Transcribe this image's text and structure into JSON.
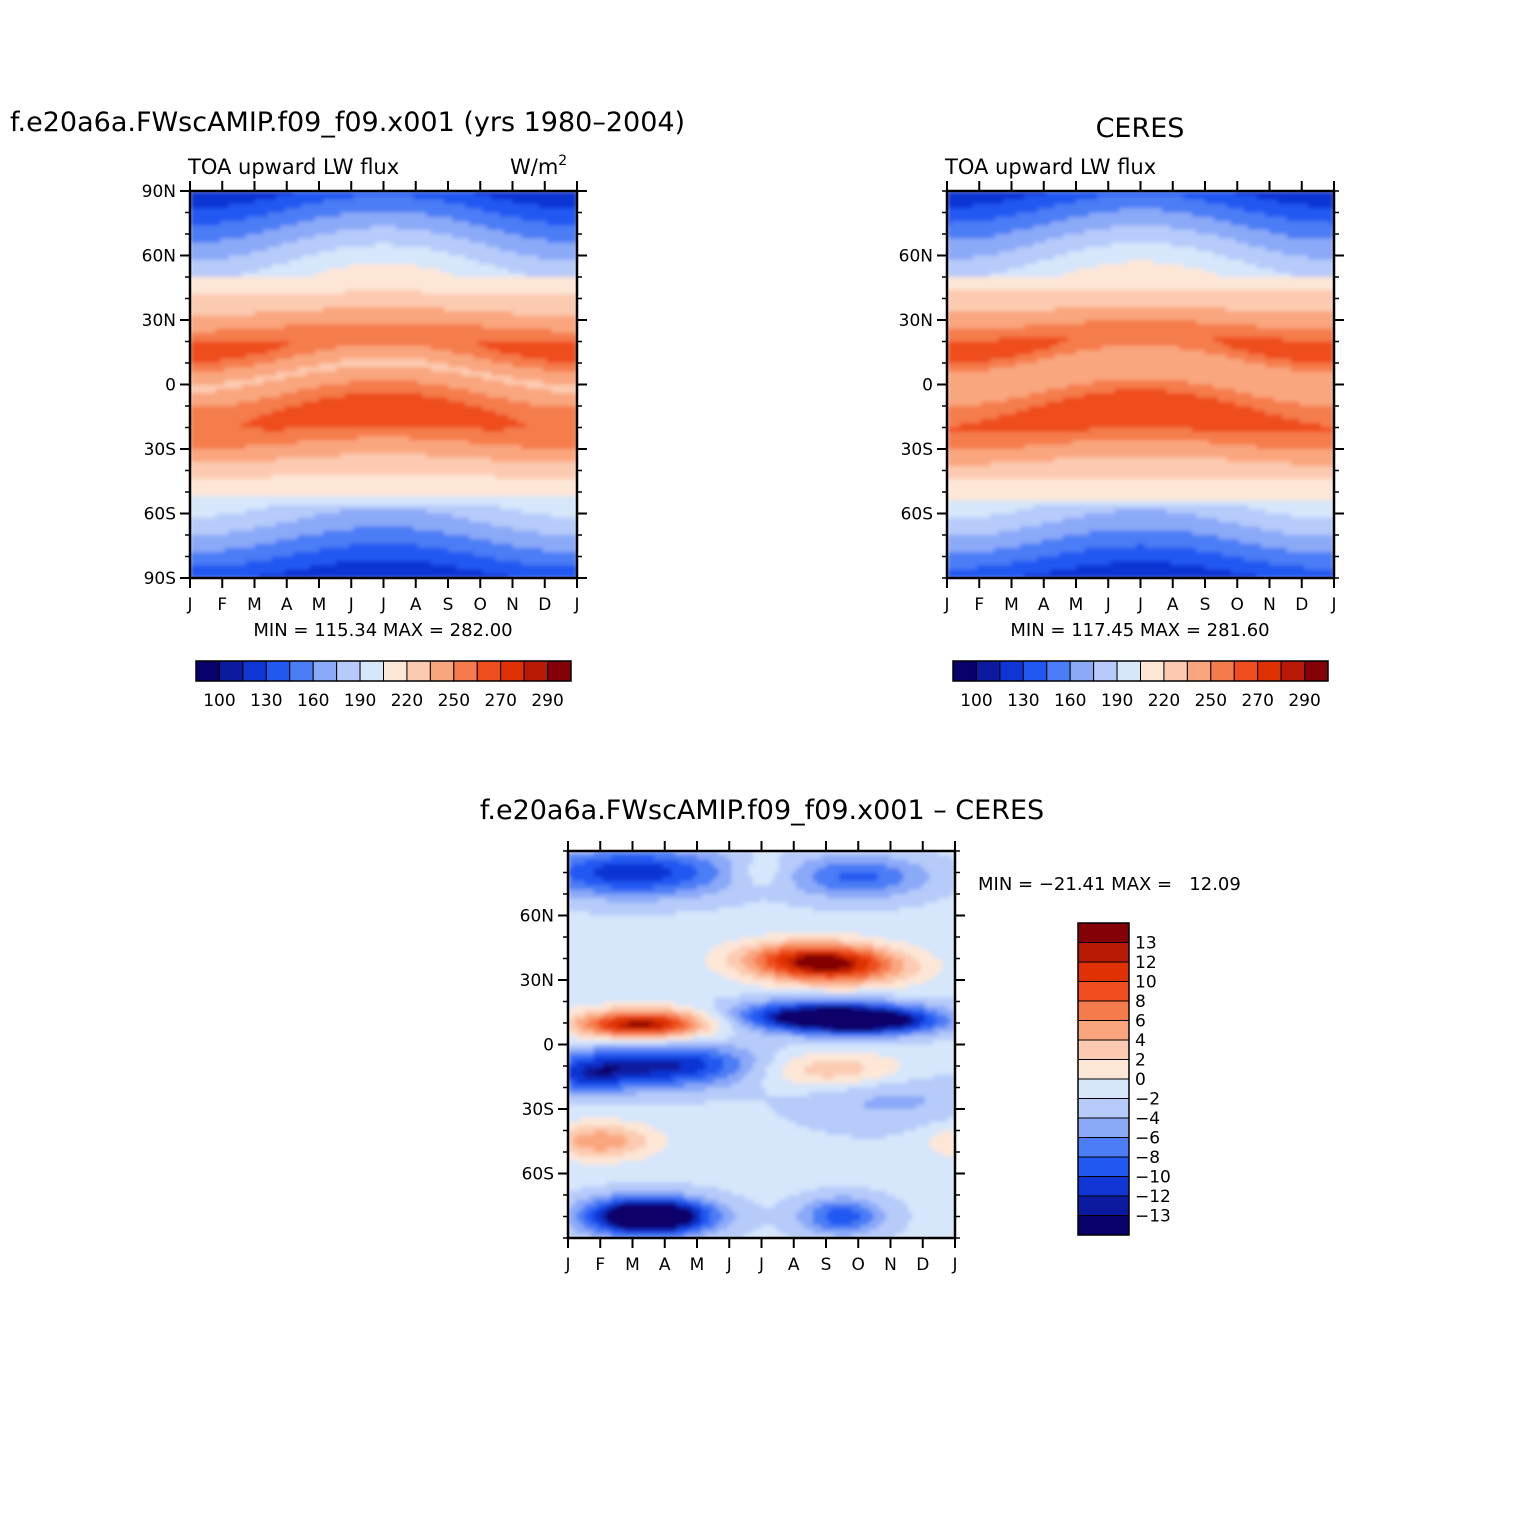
{
  "colors": {
    "abs_palette": [
      "#08006b",
      "#0b1a9f",
      "#0f36d4",
      "#2258f2",
      "#4b7df6",
      "#8aa9f7",
      "#b6cbfa",
      "#d6e6fb",
      "#fde6d6",
      "#fccab0",
      "#f9a67e",
      "#f57b4c",
      "#ef4d1e",
      "#df3103",
      "#b81a05",
      "#830006"
    ],
    "diff_palette": [
      "#08006b",
      "#0b1a9f",
      "#0f36d4",
      "#2258f2",
      "#4b7df6",
      "#8aa9f7",
      "#b6cbfa",
      "#d6e6fb",
      "#fde6d6",
      "#fccab0",
      "#f9a67e",
      "#f57b4c",
      "#ef4d1e",
      "#df3103",
      "#b81a05",
      "#830006"
    ]
  },
  "chart_data": [
    {
      "type": "heatmap",
      "title": "f.e20a6a.FWscAMIP.f09_f09.x001 (yrs 1980–2004)",
      "subtitle_left": "TOA upward LW flux",
      "subtitle_right": "W/m",
      "subtitle_right_sup": "2",
      "x_ticks": [
        "J",
        "F",
        "M",
        "A",
        "M",
        "J",
        "J",
        "A",
        "S",
        "O",
        "N",
        "D",
        "J"
      ],
      "y_ticks": [
        "90N",
        "60N",
        "30N",
        "0",
        "30S",
        "60S",
        "90S"
      ],
      "stats": "MIN = 115.34 MAX = 282.00",
      "colorbar_labels": [
        "100",
        "130",
        "160",
        "190",
        "220",
        "250",
        "270",
        "290"
      ],
      "xlim": [
        "J",
        "J"
      ],
      "ylim": [
        "90S",
        "90N"
      ],
      "z_min": 115.34,
      "z_max": 282.0
    },
    {
      "type": "heatmap",
      "title": "CERES",
      "subtitle_left": "TOA upward LW flux",
      "x_ticks": [
        "J",
        "F",
        "M",
        "A",
        "M",
        "J",
        "J",
        "A",
        "S",
        "O",
        "N",
        "D",
        "J"
      ],
      "y_ticks": [
        "60N",
        "30N",
        "0",
        "30S",
        "60S"
      ],
      "stats": "MIN = 117.45 MAX = 281.60",
      "colorbar_labels": [
        "100",
        "130",
        "160",
        "190",
        "220",
        "250",
        "270",
        "290"
      ],
      "z_min": 117.45,
      "z_max": 281.6
    },
    {
      "type": "heatmap",
      "title": "f.e20a6a.FWscAMIP.f09_f09.x001 – CERES",
      "x_ticks": [
        "J",
        "F",
        "M",
        "A",
        "M",
        "J",
        "J",
        "A",
        "S",
        "O",
        "N",
        "D",
        "J"
      ],
      "y_ticks": [
        "60N",
        "30N",
        "0",
        "30S",
        "60S"
      ],
      "stats": "MIN = −21.41 MAX =   12.09",
      "colorbar_labels": [
        "13",
        "12",
        "10",
        "8",
        "6",
        "4",
        "2",
        "0",
        "−2",
        "−4",
        "−6",
        "−8",
        "−10",
        "−12",
        "−13"
      ],
      "z_min": -21.41,
      "z_max": 12.09
    }
  ]
}
